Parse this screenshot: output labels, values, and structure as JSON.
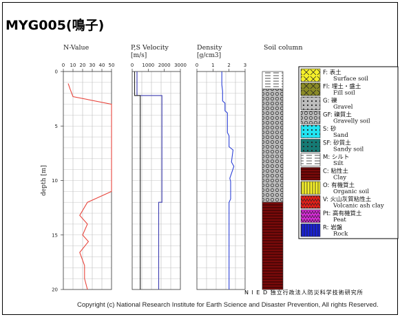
{
  "site_title": "MYG005(鳴子)",
  "footer_org": "N I E D  独立行政法人防災科学技術研究所",
  "footer_copyright": "Copyright (c) National Research Institute for Earth Science and Disaster Prevention, All rights Reserved.",
  "depth_axis": {
    "label": "depth [m]",
    "ticks": [
      0,
      5,
      10,
      15,
      20
    ],
    "range": [
      0,
      20
    ]
  },
  "chart_data": [
    {
      "type": "line",
      "title": "N-Value",
      "xlabel": "",
      "ylabel": "depth [m]",
      "xlim": [
        0,
        50
      ],
      "xticks": [
        0,
        10,
        20,
        30,
        40,
        50
      ],
      "ylim": [
        0,
        20
      ],
      "series": [
        {
          "color": "#e8453c",
          "points": [
            {
              "x": 5,
              "y": 1.1
            },
            {
              "x": 7,
              "y": 1.6
            },
            {
              "x": 10,
              "y": 2.3
            },
            {
              "x": 50,
              "y": 3.0
            },
            {
              "x": 50,
              "y": 11.0
            },
            {
              "x": 25,
              "y": 12.0
            },
            {
              "x": 17,
              "y": 13.2
            },
            {
              "x": 25,
              "y": 14.0
            },
            {
              "x": 20,
              "y": 15.0
            },
            {
              "x": 26,
              "y": 15.6
            },
            {
              "x": 17,
              "y": 16.6
            },
            {
              "x": 22,
              "y": 17.8
            },
            {
              "x": 22,
              "y": 19.0
            },
            {
              "x": 25,
              "y": 20.0
            }
          ]
        }
      ]
    },
    {
      "type": "line",
      "title": "P,S Velocity",
      "xlabel": "[m/s]",
      "ylabel": "",
      "xlim": [
        0,
        3000
      ],
      "xticks": [
        0,
        1000,
        2000,
        3000
      ],
      "ylim": [
        0,
        20
      ],
      "series": [
        {
          "color": "#3b3bb0",
          "points": [
            {
              "x": 300,
              "y": 0.0
            },
            {
              "x": 300,
              "y": 2.2
            },
            {
              "x": 1850,
              "y": 2.2
            },
            {
              "x": 1850,
              "y": 12.0
            },
            {
              "x": 1650,
              "y": 12.0
            },
            {
              "x": 1650,
              "y": 20.0
            }
          ]
        },
        {
          "color": "#222222",
          "points": [
            {
              "x": 150,
              "y": 0.0
            },
            {
              "x": 150,
              "y": 2.2
            },
            {
              "x": 500,
              "y": 2.2
            },
            {
              "x": 500,
              "y": 20.0
            }
          ]
        }
      ]
    },
    {
      "type": "line",
      "title": "Density",
      "xlabel": "[g/cm3]",
      "ylabel": "",
      "xlim": [
        0,
        3
      ],
      "xticks": [
        0,
        1,
        2,
        3
      ],
      "ylim": [
        0,
        20
      ],
      "series": [
        {
          "color": "#2a3fd6",
          "points": [
            {
              "x": 1.55,
              "y": 0.0
            },
            {
              "x": 1.55,
              "y": 1.2
            },
            {
              "x": 1.6,
              "y": 1.8
            },
            {
              "x": 1.6,
              "y": 2.7
            },
            {
              "x": 1.75,
              "y": 2.9
            },
            {
              "x": 1.75,
              "y": 3.6
            },
            {
              "x": 1.9,
              "y": 3.8
            },
            {
              "x": 1.9,
              "y": 5.6
            },
            {
              "x": 2.0,
              "y": 5.9
            },
            {
              "x": 2.0,
              "y": 6.9
            },
            {
              "x": 2.25,
              "y": 7.2
            },
            {
              "x": 2.15,
              "y": 8.3
            },
            {
              "x": 2.3,
              "y": 8.7
            },
            {
              "x": 2.05,
              "y": 9.8
            },
            {
              "x": 2.1,
              "y": 10.1
            },
            {
              "x": 2.1,
              "y": 11.7
            },
            {
              "x": 2.0,
              "y": 12.0
            },
            {
              "x": 2.0,
              "y": 20.0
            }
          ]
        }
      ]
    }
  ],
  "soil_column": {
    "title": "Soil column",
    "layers": [
      {
        "type": "M",
        "top": 0.0,
        "bottom": 1.6
      },
      {
        "type": "GF",
        "top": 1.6,
        "bottom": 12.0
      },
      {
        "type": "C",
        "top": 12.0,
        "bottom": 20.0
      }
    ]
  },
  "legend": {
    "items": [
      {
        "code": "F",
        "label_ja": "F: 表土",
        "label_en": "Surface soil",
        "color": "#f5f02a",
        "pattern": "cross"
      },
      {
        "code": "Fl",
        "label_ja": "Fl: 埋土・盛土",
        "label_en": "Fill soil",
        "color": "#8a8a26",
        "pattern": "cross"
      },
      {
        "code": "G",
        "label_ja": "G: 礫",
        "label_en": "Gravel",
        "color": "#bdbdbd",
        "pattern": "dots"
      },
      {
        "code": "GF",
        "label_ja": "GF: 礫質土",
        "label_en": "Gravelly soil",
        "color": "#bdbdbd",
        "pattern": "circles"
      },
      {
        "code": "S",
        "label_ja": "S: 砂",
        "label_en": "Sand",
        "color": "#22e3f0",
        "pattern": "dots"
      },
      {
        "code": "SF",
        "label_ja": "SF: 砂質土",
        "label_en": "Sandy soil",
        "color": "#157a74",
        "pattern": "dots"
      },
      {
        "code": "M",
        "label_ja": "M: シルト",
        "label_en": "Silt",
        "color": "#ffffff",
        "pattern": "dashes"
      },
      {
        "code": "C",
        "label_ja": "C: 粘性土",
        "label_en": "Clay",
        "color": "#7a0a0a",
        "pattern": "hlines"
      },
      {
        "code": "O",
        "label_ja": "O: 有機質土",
        "label_en": "Organic soil",
        "color": "#f5f02a",
        "pattern": "vlines"
      },
      {
        "code": "V",
        "label_ja": "V: 火山灰質粘性土",
        "label_en": "Volcanic ash clay",
        "color": "#e8201a",
        "pattern": "zigzag"
      },
      {
        "code": "Pt",
        "label_ja": "Pt: 高有機質土",
        "label_en": "Peat",
        "color": "#d62ad6",
        "pattern": "zigzag"
      },
      {
        "code": "R",
        "label_ja": "R: 岩盤",
        "label_en": "Rock",
        "color": "#1a22d6",
        "pattern": "vlines"
      }
    ]
  }
}
